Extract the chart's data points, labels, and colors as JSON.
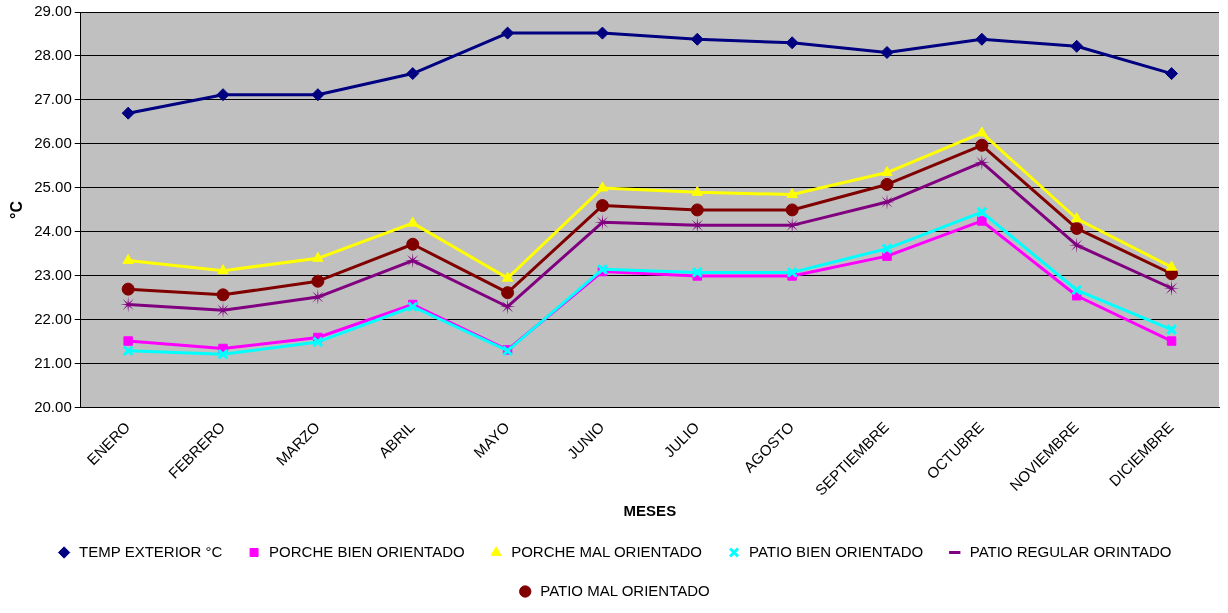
{
  "chart_data": {
    "type": "line",
    "xlabel": "MESES",
    "ylabel": "°C",
    "categories": [
      "ENERO",
      "FEBRERO",
      "MARZO",
      "ABRIL",
      "MAYO",
      "JUNIO",
      "JULIO",
      "AGOSTO",
      "SEPTIEMBRE",
      "OCTUBRE",
      "NOVIEMBRE",
      "DICIEMBRE"
    ],
    "ylim": [
      20,
      29
    ],
    "yticks": [
      {
        "value": 20,
        "label": "20.00"
      },
      {
        "value": 21,
        "label": "21.00"
      },
      {
        "value": 22,
        "label": "22.00"
      },
      {
        "value": 23,
        "label": "23.00"
      },
      {
        "value": 24,
        "label": "24.00"
      },
      {
        "value": 25,
        "label": "25.00"
      },
      {
        "value": 26,
        "label": "26.00"
      },
      {
        "value": 27,
        "label": "27.00"
      },
      {
        "value": 28,
        "label": "28.00"
      },
      {
        "value": 29,
        "label": "29.00"
      }
    ],
    "grid": "y",
    "legend": "bottom",
    "line_style": "solid",
    "series": [
      {
        "name": "TEMP EXTERIOR °C",
        "color": "#000080",
        "marker": "diamond",
        "values": [
          26.7,
          27.12,
          27.12,
          27.6,
          28.52,
          28.52,
          28.38,
          28.3,
          28.08,
          28.38,
          28.22,
          27.6
        ]
      },
      {
        "name": "PORCHE BIEN ORIENTADO",
        "color": "#ff00ff",
        "marker": "square",
        "values": [
          21.52,
          21.35,
          21.6,
          22.35,
          21.32,
          23.1,
          23.0,
          23.0,
          23.45,
          24.25,
          22.55,
          21.52
        ]
      },
      {
        "name": "PORCHE MAL ORIENTADO",
        "color": "#ffff00",
        "marker": "triangle",
        "values": [
          23.35,
          23.12,
          23.4,
          24.2,
          22.95,
          25.0,
          24.9,
          24.85,
          25.35,
          26.25,
          24.3,
          23.2
        ]
      },
      {
        "name": "PATIO BIEN ORIENTADO",
        "color": "#00ffff",
        "marker": "cross",
        "values": [
          21.3,
          21.22,
          21.5,
          22.3,
          21.3,
          23.15,
          23.08,
          23.08,
          23.62,
          24.45,
          22.68,
          21.78
        ]
      },
      {
        "name": "PATIO REGULAR ORINTADO",
        "color": "#800080",
        "marker": "star",
        "values": [
          22.35,
          22.22,
          22.52,
          23.35,
          22.3,
          24.22,
          24.15,
          24.15,
          24.68,
          25.58,
          23.7,
          22.72
        ]
      },
      {
        "name": "PATIO MAL ORIENTADO",
        "color": "#800000",
        "marker": "circle",
        "values": [
          22.7,
          22.57,
          22.88,
          23.72,
          22.62,
          24.6,
          24.5,
          24.5,
          25.08,
          25.97,
          24.08,
          23.05
        ]
      }
    ]
  }
}
